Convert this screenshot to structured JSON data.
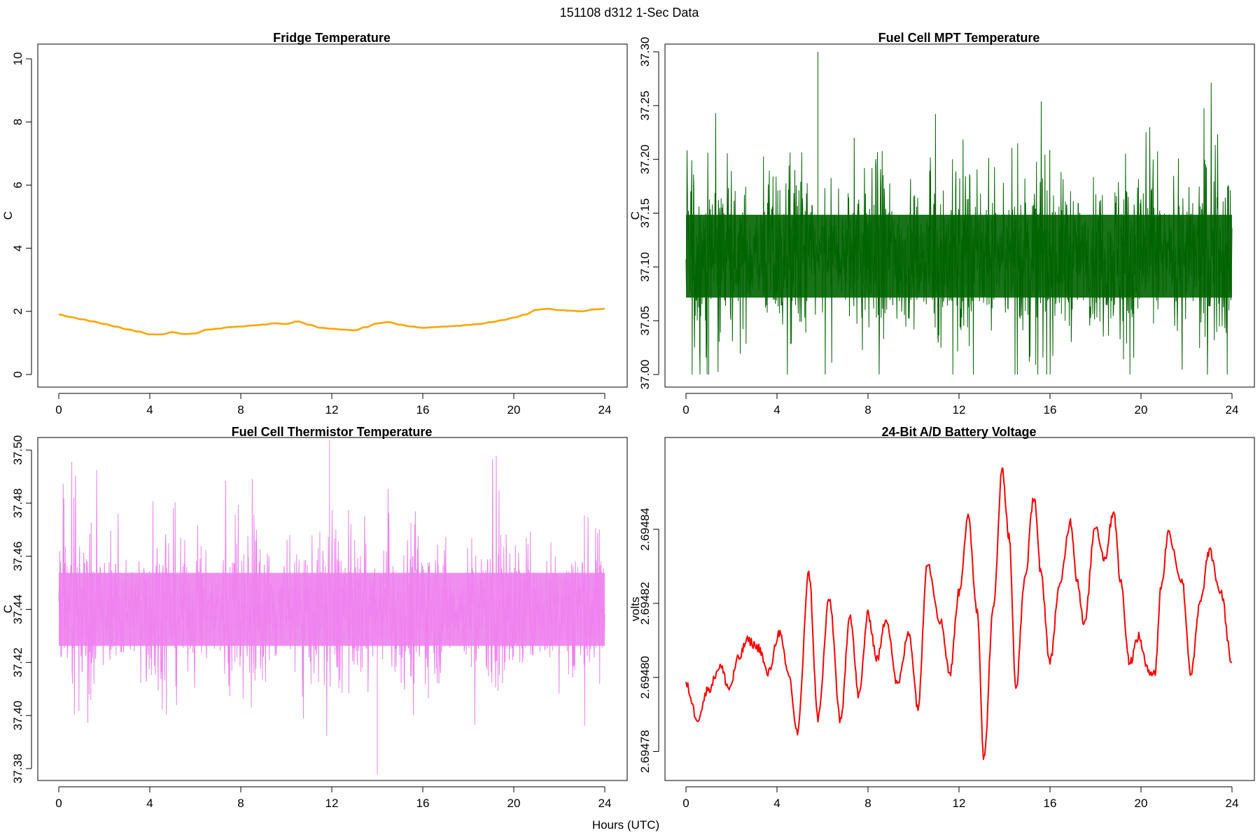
{
  "figure": {
    "suptitle": "151108   d312   1-Sec Data",
    "xlabel": "Hours (UTC)"
  },
  "chart_data": [
    {
      "type": "line",
      "title": "Fridge Temperature",
      "ylabel": "C",
      "xlabel": "Hours (UTC)",
      "color": "#FFA500",
      "xlim": [
        0,
        24
      ],
      "ylim": [
        0,
        10
      ],
      "xticks": [
        0,
        4,
        8,
        12,
        16,
        20,
        24
      ],
      "xtick_labels": [
        "0",
        "4",
        "8",
        "12",
        "16",
        "20",
        "24"
      ],
      "yticks": [
        0,
        2,
        4,
        6,
        8,
        10
      ],
      "ytick_labels": [
        "0",
        "2",
        "4",
        "6",
        "8",
        "10"
      ],
      "line_width": 2.6,
      "x": [
        0,
        0.5,
        1,
        1.5,
        2,
        2.5,
        3,
        3.5,
        4,
        4.5,
        5,
        5.5,
        6,
        6.5,
        7,
        7.5,
        8,
        8.5,
        9,
        9.5,
        10,
        10.5,
        11,
        11.5,
        12,
        12.5,
        13,
        13.5,
        14,
        14.5,
        15,
        15.5,
        16,
        16.5,
        17,
        17.5,
        18,
        18.5,
        19,
        19.5,
        20,
        20.5,
        21,
        21.5,
        22,
        22.5,
        23,
        23.5,
        24
      ],
      "y": [
        1.9,
        1.82,
        1.75,
        1.68,
        1.6,
        1.52,
        1.43,
        1.36,
        1.27,
        1.27,
        1.34,
        1.28,
        1.3,
        1.42,
        1.45,
        1.5,
        1.52,
        1.55,
        1.58,
        1.62,
        1.6,
        1.68,
        1.58,
        1.48,
        1.45,
        1.42,
        1.4,
        1.5,
        1.62,
        1.66,
        1.58,
        1.52,
        1.48,
        1.5,
        1.52,
        1.54,
        1.57,
        1.6,
        1.66,
        1.72,
        1.8,
        1.9,
        2.05,
        2.08,
        2.04,
        2.02,
        2.0,
        2.06,
        2.08
      ]
    },
    {
      "type": "line",
      "title": "Fuel Cell MPT Temperature",
      "ylabel": "C",
      "xlabel": "Hours (UTC)",
      "color": "#006400",
      "xlim": [
        0,
        24
      ],
      "ylim": [
        37.0,
        37.3
      ],
      "xticks": [
        0,
        4,
        8,
        12,
        16,
        20,
        24
      ],
      "xtick_labels": [
        "0",
        "4",
        "8",
        "12",
        "16",
        "20",
        "24"
      ],
      "yticks": [
        37.0,
        37.05,
        37.1,
        37.15,
        37.2,
        37.25,
        37.3
      ],
      "ytick_labels": [
        "37.00",
        "37.05",
        "37.10",
        "37.15",
        "37.20",
        "37.25",
        "37.30"
      ],
      "line_width": 1.0,
      "center": 37.11,
      "noise_band": [
        37.04,
        37.18
      ],
      "max_value": 37.3,
      "min_value": 37.0,
      "spike_hours": [
        5.8
      ]
    },
    {
      "type": "line",
      "title": "Fuel Cell Thermistor Temperature",
      "ylabel": "C",
      "xlabel": "Hours (UTC)",
      "color": "#EE82EE",
      "xlim": [
        0,
        24
      ],
      "ylim": [
        37.38,
        37.5
      ],
      "xticks": [
        0,
        4,
        8,
        12,
        16,
        20,
        24
      ],
      "xtick_labels": [
        "0",
        "4",
        "8",
        "12",
        "16",
        "20",
        "24"
      ],
      "yticks": [
        37.38,
        37.4,
        37.42,
        37.44,
        37.46,
        37.48,
        37.5
      ],
      "ytick_labels": [
        "37.38",
        "37.40",
        "37.42",
        "37.44",
        "37.46",
        "37.48",
        "37.50"
      ],
      "line_width": 1.0,
      "center": 37.44,
      "noise_band": [
        37.415,
        37.465
      ],
      "max_value": 37.504,
      "min_value": 37.378
    },
    {
      "type": "line",
      "title": "24-Bit A/D Battery Voltage",
      "ylabel": "volts",
      "xlabel": "Hours (UTC)",
      "color": "#FF0000",
      "xlim": [
        0,
        24
      ],
      "ylim": [
        2.694775,
        2.694861
      ],
      "xticks": [
        0,
        4,
        8,
        12,
        16,
        20,
        24
      ],
      "xtick_labels": [
        "0",
        "4",
        "8",
        "12",
        "16",
        "20",
        "24"
      ],
      "yticks": [
        2.69478,
        2.6948,
        2.69482,
        2.69484
      ],
      "ytick_labels": [
        "2.69478",
        "2.69480",
        "2.69482",
        "2.69484"
      ],
      "line_width": 2.0,
      "x": [
        0,
        0.5,
        1,
        1.5,
        1.9,
        2.3,
        2.7,
        3.2,
        3.6,
        4.1,
        4.5,
        4.9,
        5.4,
        5.8,
        6.3,
        6.8,
        7.2,
        7.6,
        8.0,
        8.4,
        8.8,
        9.3,
        9.8,
        10.2,
        10.6,
        11.2,
        11.6,
        12.0,
        12.4,
        12.8,
        13.1,
        13.5,
        13.9,
        14.2,
        14.5,
        14.9,
        15.3,
        15.6,
        16.0,
        16.4,
        16.9,
        17.2,
        17.5,
        18.0,
        18.4,
        18.8,
        19.1,
        19.5,
        19.9,
        20.3,
        20.6,
        20.9,
        21.2,
        21.8,
        22.2,
        22.6,
        23.0,
        23.5,
        24.0
      ],
      "y": [
        2.694798,
        2.694789,
        2.694797,
        2.694803,
        2.694797,
        2.694805,
        2.69481,
        2.694808,
        2.694801,
        2.694812,
        2.694801,
        2.694785,
        2.694828,
        2.694789,
        2.694821,
        2.694788,
        2.694817,
        2.694795,
        2.694817,
        2.694805,
        2.694816,
        2.694798,
        2.694812,
        2.694792,
        2.694831,
        2.694815,
        2.694801,
        2.694823,
        2.694843,
        2.694818,
        2.694778,
        2.694818,
        2.694856,
        2.694838,
        2.694797,
        2.694827,
        2.694849,
        2.694828,
        2.694804,
        2.694824,
        2.694842,
        2.694826,
        2.694814,
        2.694841,
        2.694832,
        2.694845,
        2.694826,
        2.694804,
        2.694811,
        2.694802,
        2.694801,
        2.694825,
        2.694839,
        2.694826,
        2.694801,
        2.69482,
        2.694834,
        2.694823,
        2.694804
      ]
    }
  ]
}
